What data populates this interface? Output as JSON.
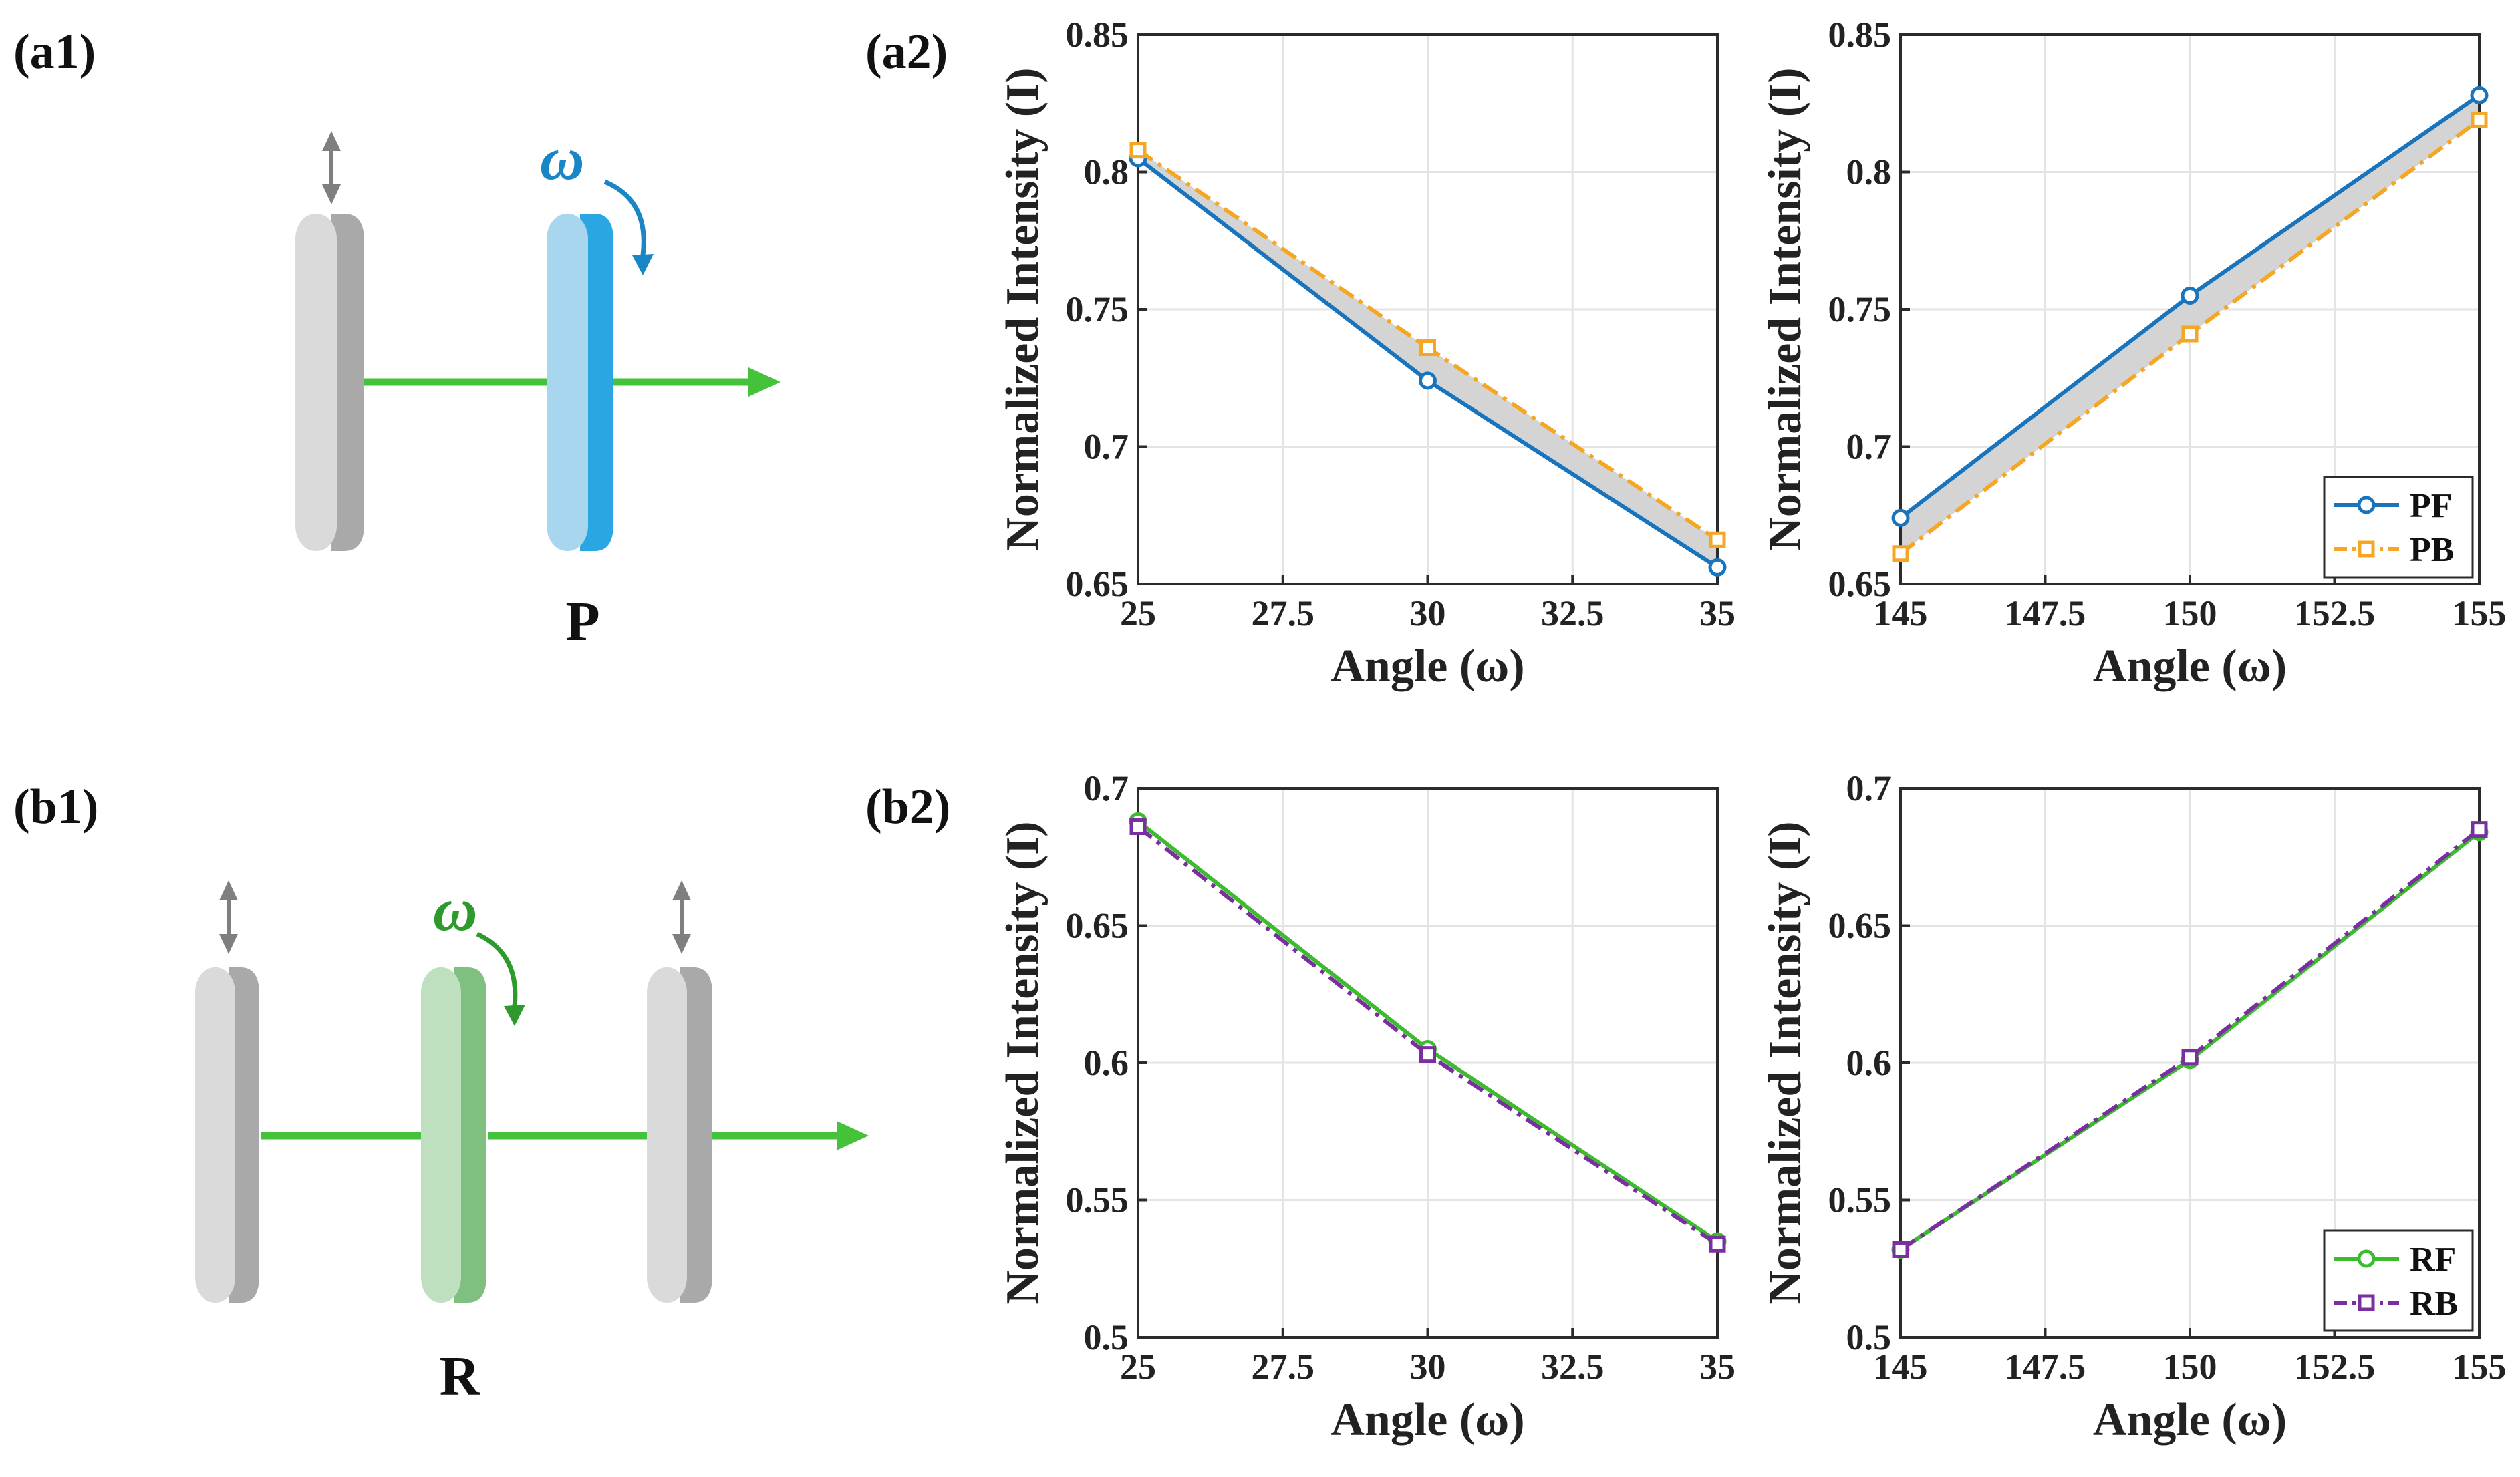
{
  "panels": {
    "a1": "(a1)",
    "a2": "(a2)",
    "b1": "(b1)",
    "b2": "(b2)"
  },
  "diagrams": {
    "top": {
      "plate_label": "P",
      "rotation_symbol": "ω",
      "accent_color": "#2aa7e3"
    },
    "bottom": {
      "plate_label": "R",
      "rotation_symbol": "ω",
      "accent_color": "#8dc98d"
    }
  },
  "colors": {
    "PF": "#1874bd",
    "PB": "#f5a623",
    "RF": "#3dbb2e",
    "RB": "#7a2fa0",
    "shade": "#d4d4d4",
    "beam": "#44c23a"
  },
  "chart_data": [
    {
      "id": "a2-left",
      "type": "line",
      "xlabel": "Angle (ω)",
      "ylabel": "Normalized Intensity (I)",
      "xlim": [
        25,
        35
      ],
      "ylim": [
        0.65,
        0.85
      ],
      "xticks": [
        "25",
        "27.5",
        "30",
        "32.5",
        "35"
      ],
      "yticks": [
        "0.65",
        "0.7",
        "0.75",
        "0.8",
        "0.85"
      ],
      "grid": true,
      "shade_between": true,
      "x": [
        25,
        30,
        35
      ],
      "series": [
        {
          "name": "PF",
          "values": [
            0.805,
            0.724,
            0.656
          ],
          "marker": "circle",
          "dash": "solid"
        },
        {
          "name": "PB",
          "values": [
            0.808,
            0.736,
            0.666
          ],
          "marker": "square",
          "dash": "dashdot"
        }
      ]
    },
    {
      "id": "a2-right",
      "type": "line",
      "xlabel": "Angle (ω)",
      "ylabel": "Normalized Intensity (I)",
      "xlim": [
        145,
        155
      ],
      "ylim": [
        0.65,
        0.85
      ],
      "xticks": [
        "145",
        "147.5",
        "150",
        "152.5",
        "155"
      ],
      "yticks": [
        "0.65",
        "0.7",
        "0.75",
        "0.8",
        "0.85"
      ],
      "grid": true,
      "shade_between": true,
      "legend": "bottom-right",
      "x": [
        145,
        150,
        155
      ],
      "series": [
        {
          "name": "PF",
          "values": [
            0.674,
            0.755,
            0.828
          ],
          "marker": "circle",
          "dash": "solid"
        },
        {
          "name": "PB",
          "values": [
            0.661,
            0.741,
            0.819
          ],
          "marker": "square",
          "dash": "dashdot"
        }
      ]
    },
    {
      "id": "b2-left",
      "type": "line",
      "xlabel": "Angle (ω)",
      "ylabel": "Normalized Intensity (I)",
      "xlim": [
        25,
        35
      ],
      "ylim": [
        0.5,
        0.7
      ],
      "xticks": [
        "25",
        "27.5",
        "30",
        "32.5",
        "35"
      ],
      "yticks": [
        "0.5",
        "0.55",
        "0.6",
        "0.65",
        "0.7"
      ],
      "grid": true,
      "shade_between": false,
      "x": [
        25,
        30,
        35
      ],
      "series": [
        {
          "name": "RF",
          "values": [
            0.688,
            0.605,
            0.535
          ],
          "marker": "circle",
          "dash": "solid"
        },
        {
          "name": "RB",
          "values": [
            0.686,
            0.603,
            0.534
          ],
          "marker": "square",
          "dash": "dashdot"
        }
      ]
    },
    {
      "id": "b2-right",
      "type": "line",
      "xlabel": "Angle (ω)",
      "ylabel": "Normalized Intensity (I)",
      "xlim": [
        145,
        155
      ],
      "ylim": [
        0.5,
        0.7
      ],
      "xticks": [
        "145",
        "147.5",
        "150",
        "152.5",
        "155"
      ],
      "yticks": [
        "0.5",
        "0.55",
        "0.6",
        "0.65",
        "0.7"
      ],
      "grid": true,
      "shade_between": false,
      "legend": "bottom-right",
      "x": [
        145,
        150,
        155
      ],
      "series": [
        {
          "name": "RF",
          "values": [
            0.532,
            0.601,
            0.684
          ],
          "marker": "circle",
          "dash": "solid"
        },
        {
          "name": "RB",
          "values": [
            0.532,
            0.602,
            0.685
          ],
          "marker": "square",
          "dash": "dashdot"
        }
      ]
    }
  ]
}
